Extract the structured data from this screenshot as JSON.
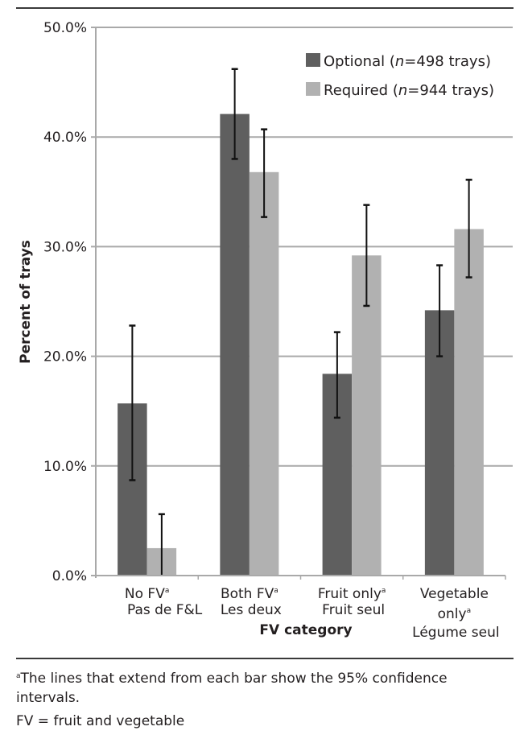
{
  "chart_data": {
    "type": "bar",
    "title": "",
    "xlabel": "FV category",
    "ylabel": "Percent of trays",
    "ylim": [
      0,
      50
    ],
    "yticks": [
      "0.0%",
      "10.0%",
      "20.0%",
      "30.0%",
      "40.0%",
      "50.0%"
    ],
    "ytick_values": [
      0,
      10,
      20,
      30,
      40,
      50
    ],
    "grid": true,
    "legend_position": "top-right",
    "categories": [
      {
        "label": "No FV",
        "sup": "a",
        "label_fr": "Pas de F&L"
      },
      {
        "label": "Both FV",
        "sup": "a",
        "label_fr": "Les deux"
      },
      {
        "label": "Fruit only",
        "sup": "a",
        "label_fr": "Fruit seul"
      },
      {
        "label": "Vegetable",
        "label2": "only",
        "sup": "a",
        "label_fr": "Légume seul"
      }
    ],
    "series": [
      {
        "name": "Optional",
        "legend_prefix": "Optional (",
        "legend_n_italic": "n",
        "legend_suffix": "=498 trays)",
        "color": "#5f5f5f",
        "values": [
          15.7,
          42.1,
          18.4,
          24.2
        ],
        "ci_low": [
          8.7,
          38.0,
          14.4,
          20.0
        ],
        "ci_high": [
          22.8,
          46.2,
          22.2,
          28.3
        ]
      },
      {
        "name": "Required",
        "legend_prefix": "Required (",
        "legend_n_italic": "n",
        "legend_suffix": "=944 trays)",
        "color": "#b1b1b1",
        "values": [
          2.5,
          36.8,
          29.2,
          31.6
        ],
        "ci_low": [
          0.0,
          32.7,
          24.6,
          27.2
        ],
        "ci_high": [
          5.6,
          40.7,
          33.8,
          36.1
        ]
      }
    ],
    "gridline_color": "#a9a9a9",
    "errorbar_color": "#111111"
  },
  "footnotes": {
    "note_a_marker": "a",
    "note_a": "The lines that extend from each bar show the 95% confidence intervals.",
    "abbrev": "FV = fruit and vegetable"
  }
}
